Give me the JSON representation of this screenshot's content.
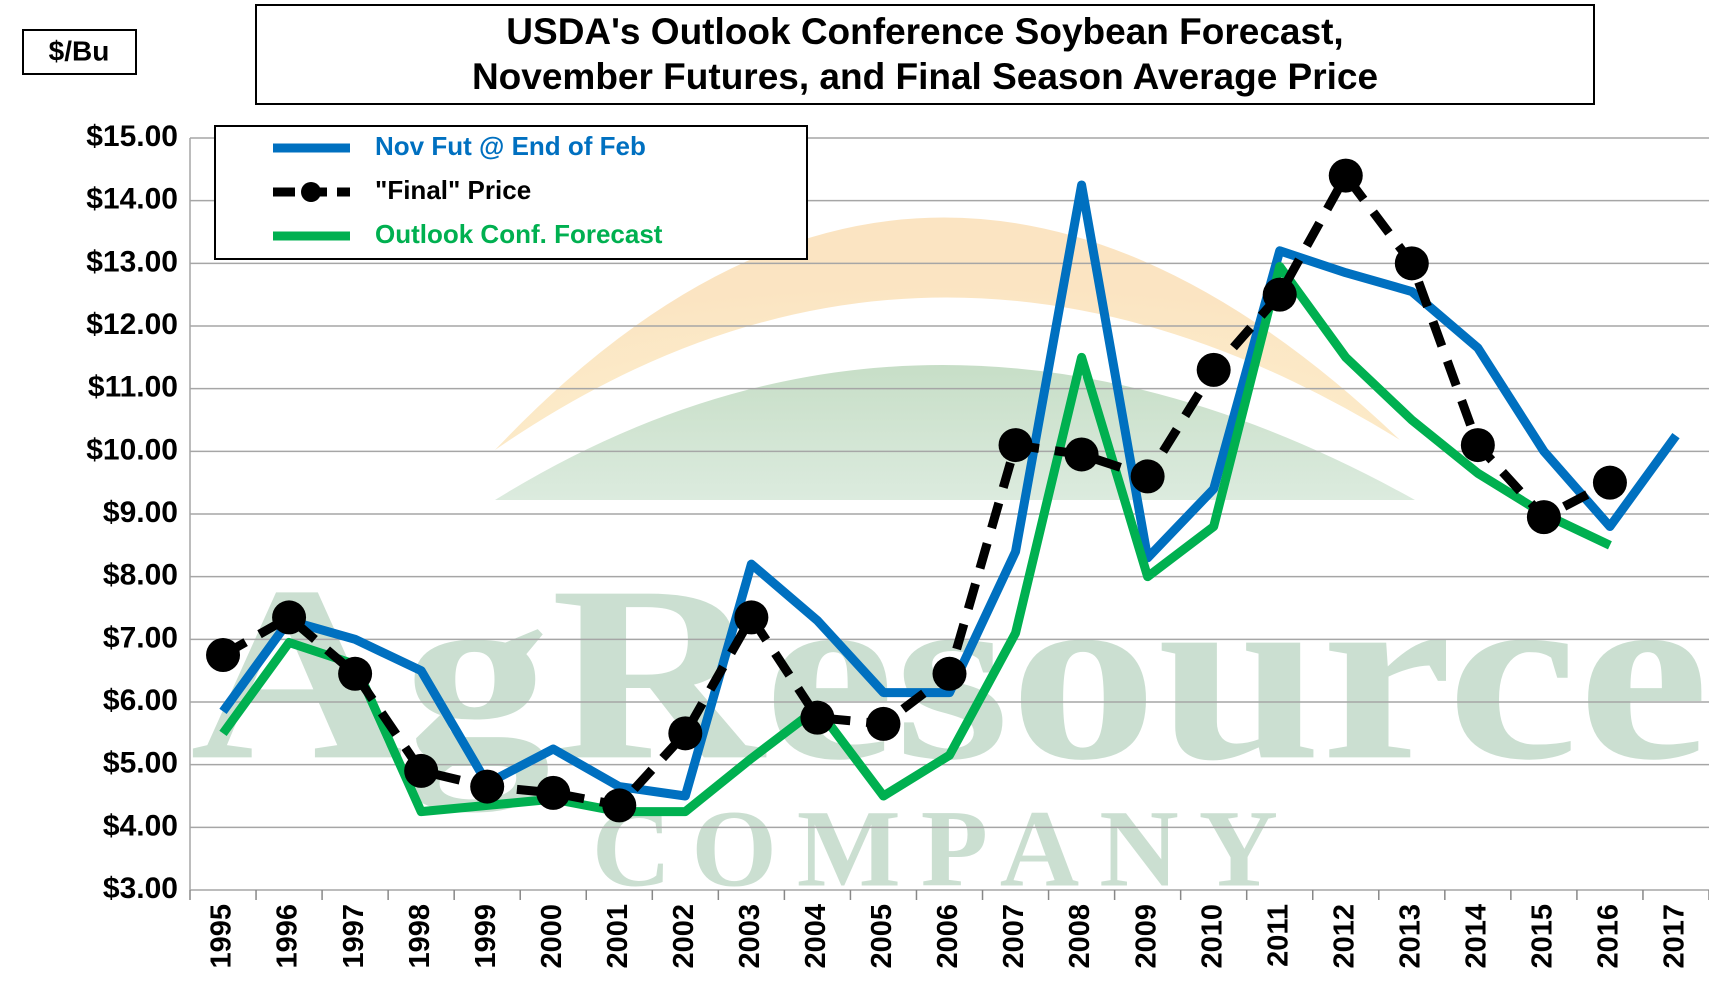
{
  "chart_data": {
    "type": "line",
    "title": [
      "USDA's Outlook Conference Soybean Forecast,",
      "November Futures, and Final Season Average Price"
    ],
    "y_label": "$/Bu",
    "watermark": "AgResource",
    "watermark_sub": "COMPANY",
    "categories": [
      "1995",
      "1996",
      "1997",
      "1998",
      "1999",
      "2000",
      "2001",
      "2002",
      "2003",
      "2004",
      "2005",
      "2006",
      "2007",
      "2008",
      "2009",
      "2010",
      "2011",
      "2012",
      "2013",
      "2014",
      "2015",
      "2016",
      "2017"
    ],
    "series": [
      {
        "name": "Nov Fut @ End of Feb",
        "color": "#0070c0",
        "dashed": false,
        "markers": false,
        "values": [
          5.85,
          7.3,
          7.0,
          6.5,
          4.7,
          5.25,
          4.65,
          4.5,
          8.2,
          7.3,
          6.15,
          6.15,
          8.4,
          14.25,
          8.3,
          9.4,
          13.2,
          12.85,
          12.55,
          11.65,
          10.0,
          8.8,
          10.25
        ]
      },
      {
        "name": "\"Final\" Price",
        "color": "#000000",
        "dashed": true,
        "markers": true,
        "values": [
          6.75,
          7.35,
          6.45,
          4.9,
          4.65,
          4.55,
          4.35,
          5.5,
          7.35,
          5.75,
          5.65,
          6.45,
          10.1,
          9.95,
          9.6,
          11.3,
          12.5,
          14.4,
          13.0,
          10.1,
          8.95,
          9.5,
          null
        ]
      },
      {
        "name": "Outlook Conf. Forecast",
        "color": "#00b050",
        "dashed": false,
        "markers": false,
        "values": [
          5.5,
          6.95,
          6.6,
          4.25,
          4.35,
          4.45,
          4.25,
          4.25,
          5.1,
          5.9,
          4.5,
          5.15,
          7.1,
          11.5,
          8.0,
          8.8,
          12.95,
          11.5,
          10.5,
          9.65,
          9.0,
          8.5,
          null
        ]
      }
    ],
    "ylim": [
      3,
      15
    ],
    "yticks": [
      {
        "value": 3,
        "label": "$3.00"
      },
      {
        "value": 4,
        "label": "$4.00"
      },
      {
        "value": 5,
        "label": "$5.00"
      },
      {
        "value": 6,
        "label": "$6.00"
      },
      {
        "value": 7,
        "label": "$7.00"
      },
      {
        "value": 8,
        "label": "$8.00"
      },
      {
        "value": 9,
        "label": "$9.00"
      },
      {
        "value": 10,
        "label": "$10.00"
      },
      {
        "value": 11,
        "label": "$11.00"
      },
      {
        "value": 12,
        "label": "$12.00"
      },
      {
        "value": 13,
        "label": "$13.00"
      },
      {
        "value": 14,
        "label": "$14.00"
      },
      {
        "value": 15,
        "label": "$15.00"
      }
    ],
    "grid": true,
    "legend": "top-left"
  }
}
